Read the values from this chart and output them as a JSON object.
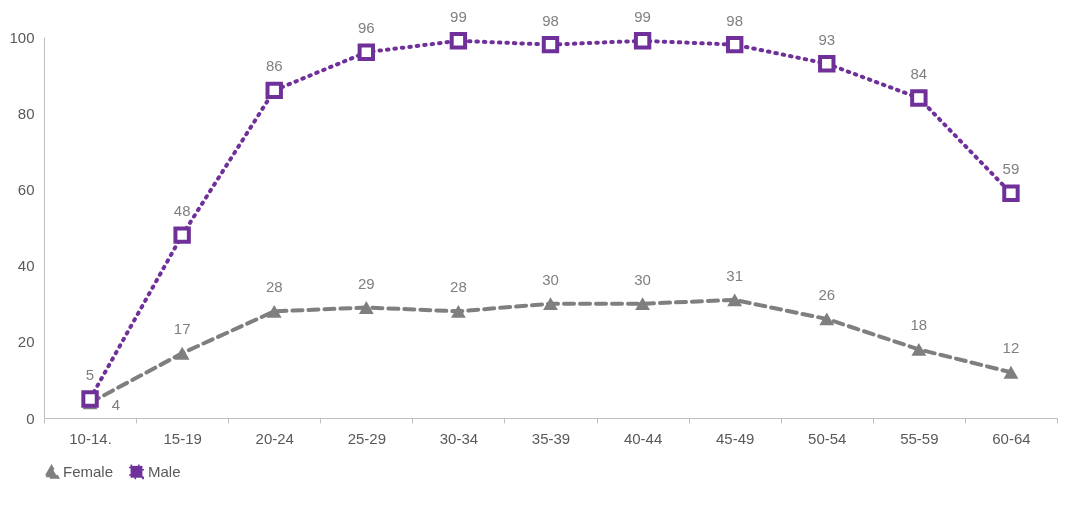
{
  "chart_data": {
    "type": "line",
    "categories": [
      "10-14.",
      "15-19",
      "20-24",
      "25-29",
      "30-34",
      "35-39",
      "40-44",
      "45-49",
      "50-54",
      "55-59",
      "60-64"
    ],
    "series": [
      {
        "name": "Female",
        "color": "#7f7f7f",
        "marker": "triangle",
        "line_style": "dashed",
        "values": [
          4,
          17,
          28,
          29,
          28,
          30,
          30,
          31,
          26,
          18,
          12
        ]
      },
      {
        "name": "Male",
        "color": "#70309a",
        "marker": "square",
        "line_style": "dotted",
        "values": [
          5,
          48,
          86,
          96,
          99,
          98,
          99,
          98,
          93,
          84,
          59
        ]
      }
    ],
    "ylim": [
      0,
      100
    ],
    "yticks": [
      0,
      20,
      40,
      60,
      80,
      100
    ],
    "grid": false,
    "legend": "bottom",
    "data_labels": true
  }
}
